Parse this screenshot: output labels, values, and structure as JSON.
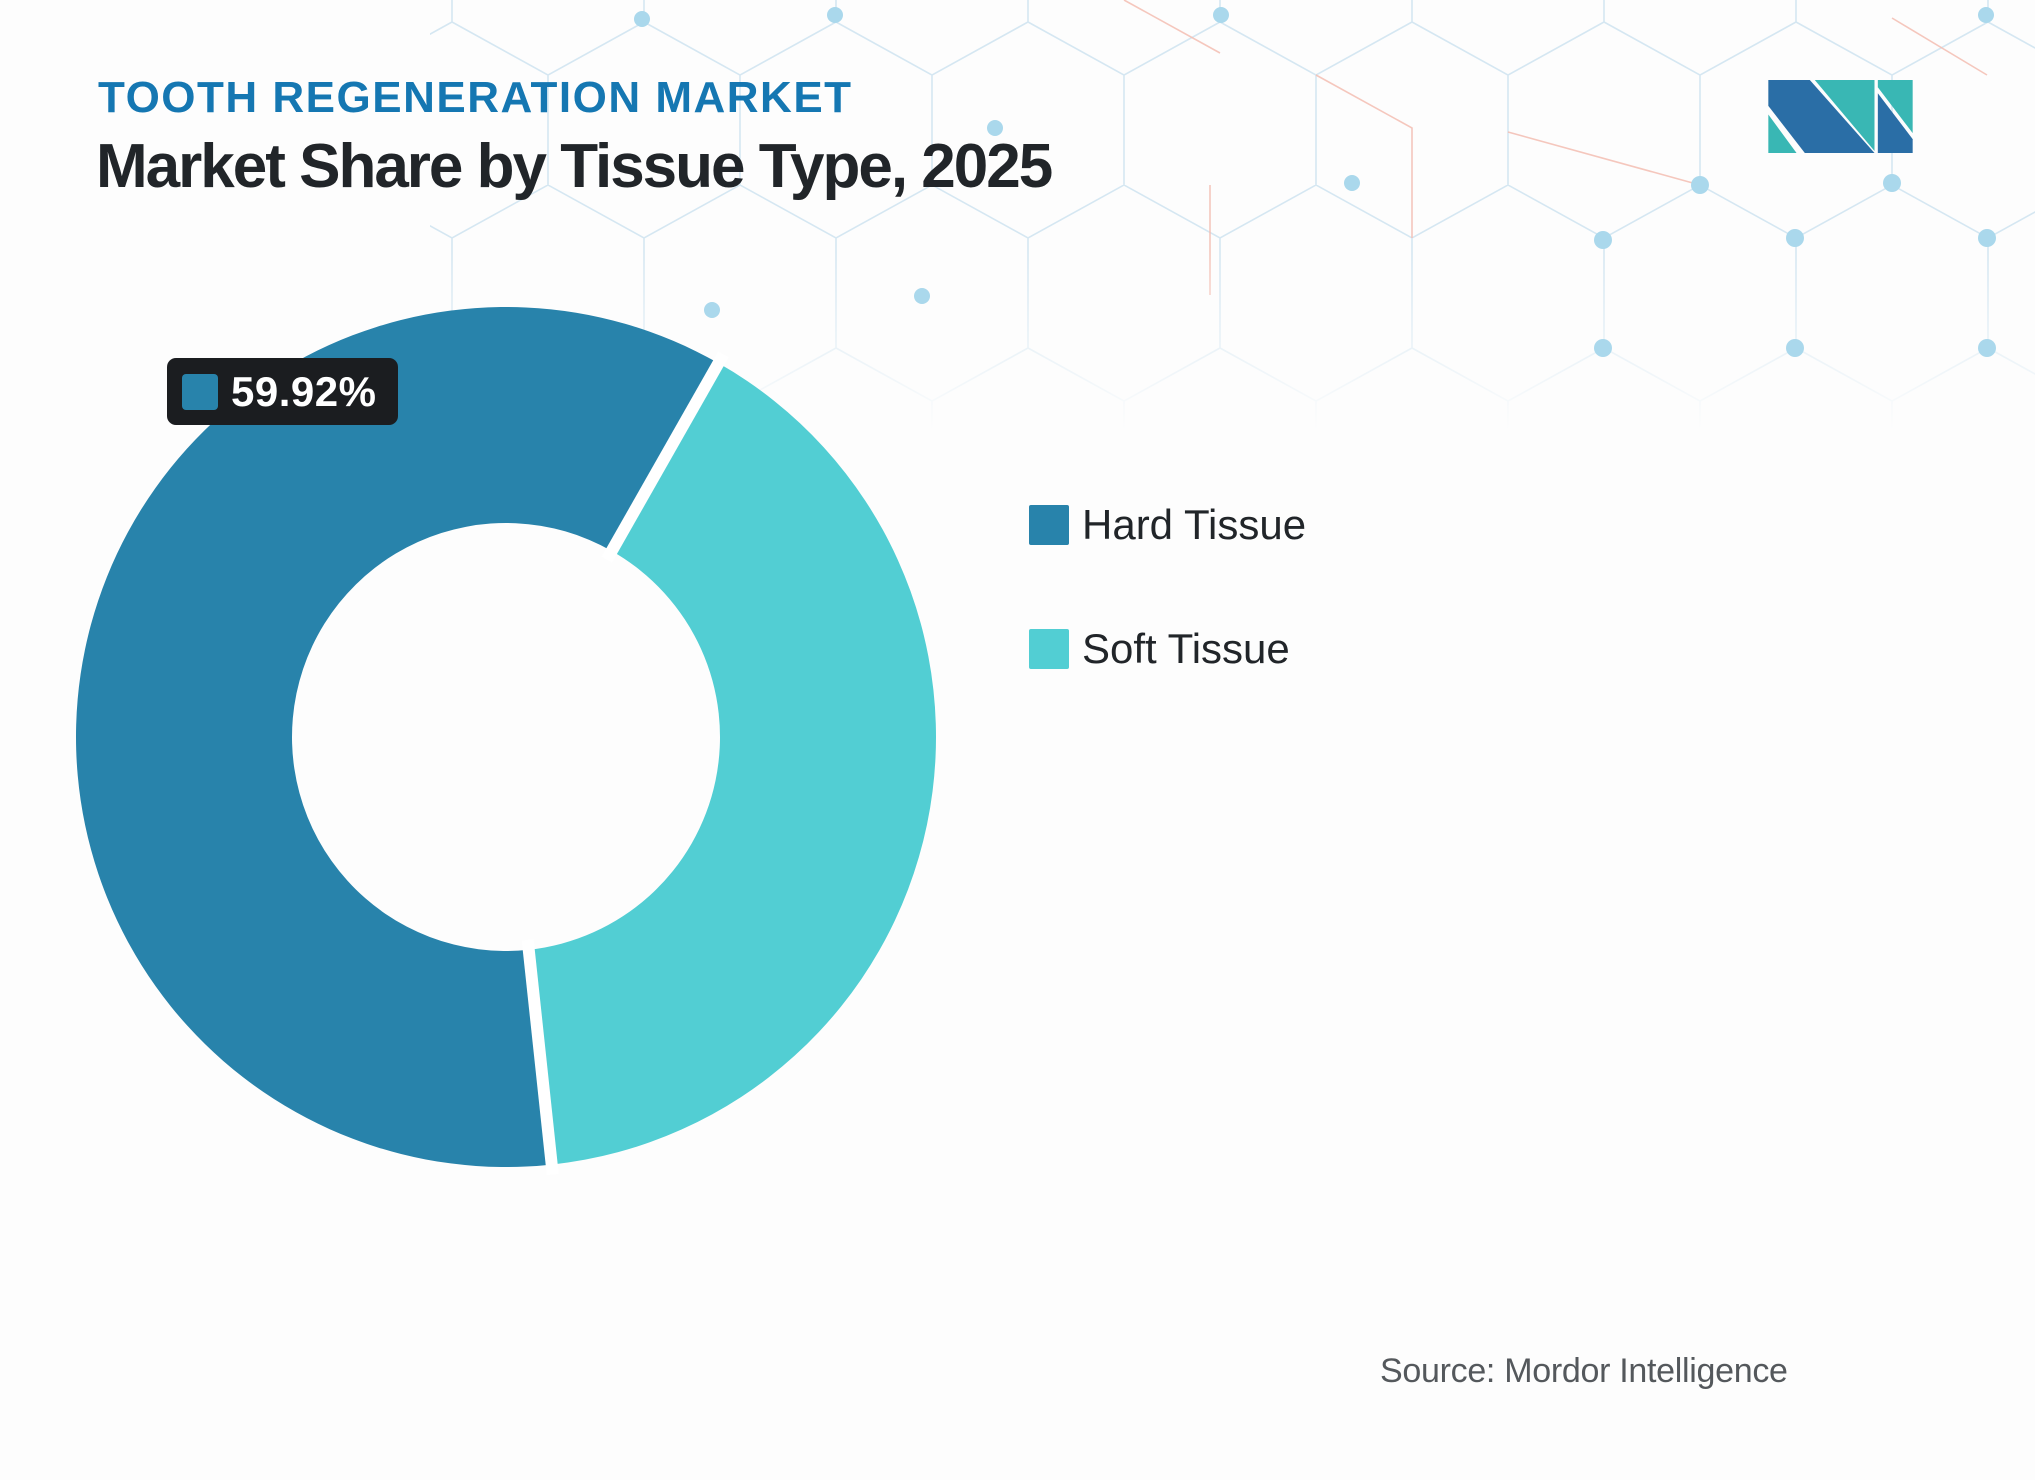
{
  "header": {
    "eyebrow": "TOOTH REGENERATION MARKET",
    "title": "Market Share by Tissue Type, 2025"
  },
  "branding": {
    "logo_name": "mordor-intelligence-logo",
    "logo_blue": "#2a6ea6",
    "logo_teal": "#39b7b4"
  },
  "chart_data": {
    "type": "pie",
    "subtype": "donut",
    "title": "Market Share by Tissue Type, 2025",
    "categories": [
      "Hard Tissue",
      "Soft Tissue"
    ],
    "values": [
      59.92,
      40.08
    ],
    "unit": "%",
    "slices": [
      {
        "label": "Hard Tissue",
        "value": 59.92,
        "color": "#2883ab"
      },
      {
        "label": "Soft Tissue",
        "value": 40.08,
        "color": "#52ced3"
      }
    ],
    "annotation": {
      "text": "59.92%",
      "series": "Hard Tissue"
    },
    "legend_position": "right",
    "start_angle_deg": 173.9,
    "donut_hole_ratio": 0.5,
    "slice_gap_color": "#ffffff"
  },
  "footer": {
    "source": "Source: Mordor Intelligence"
  }
}
